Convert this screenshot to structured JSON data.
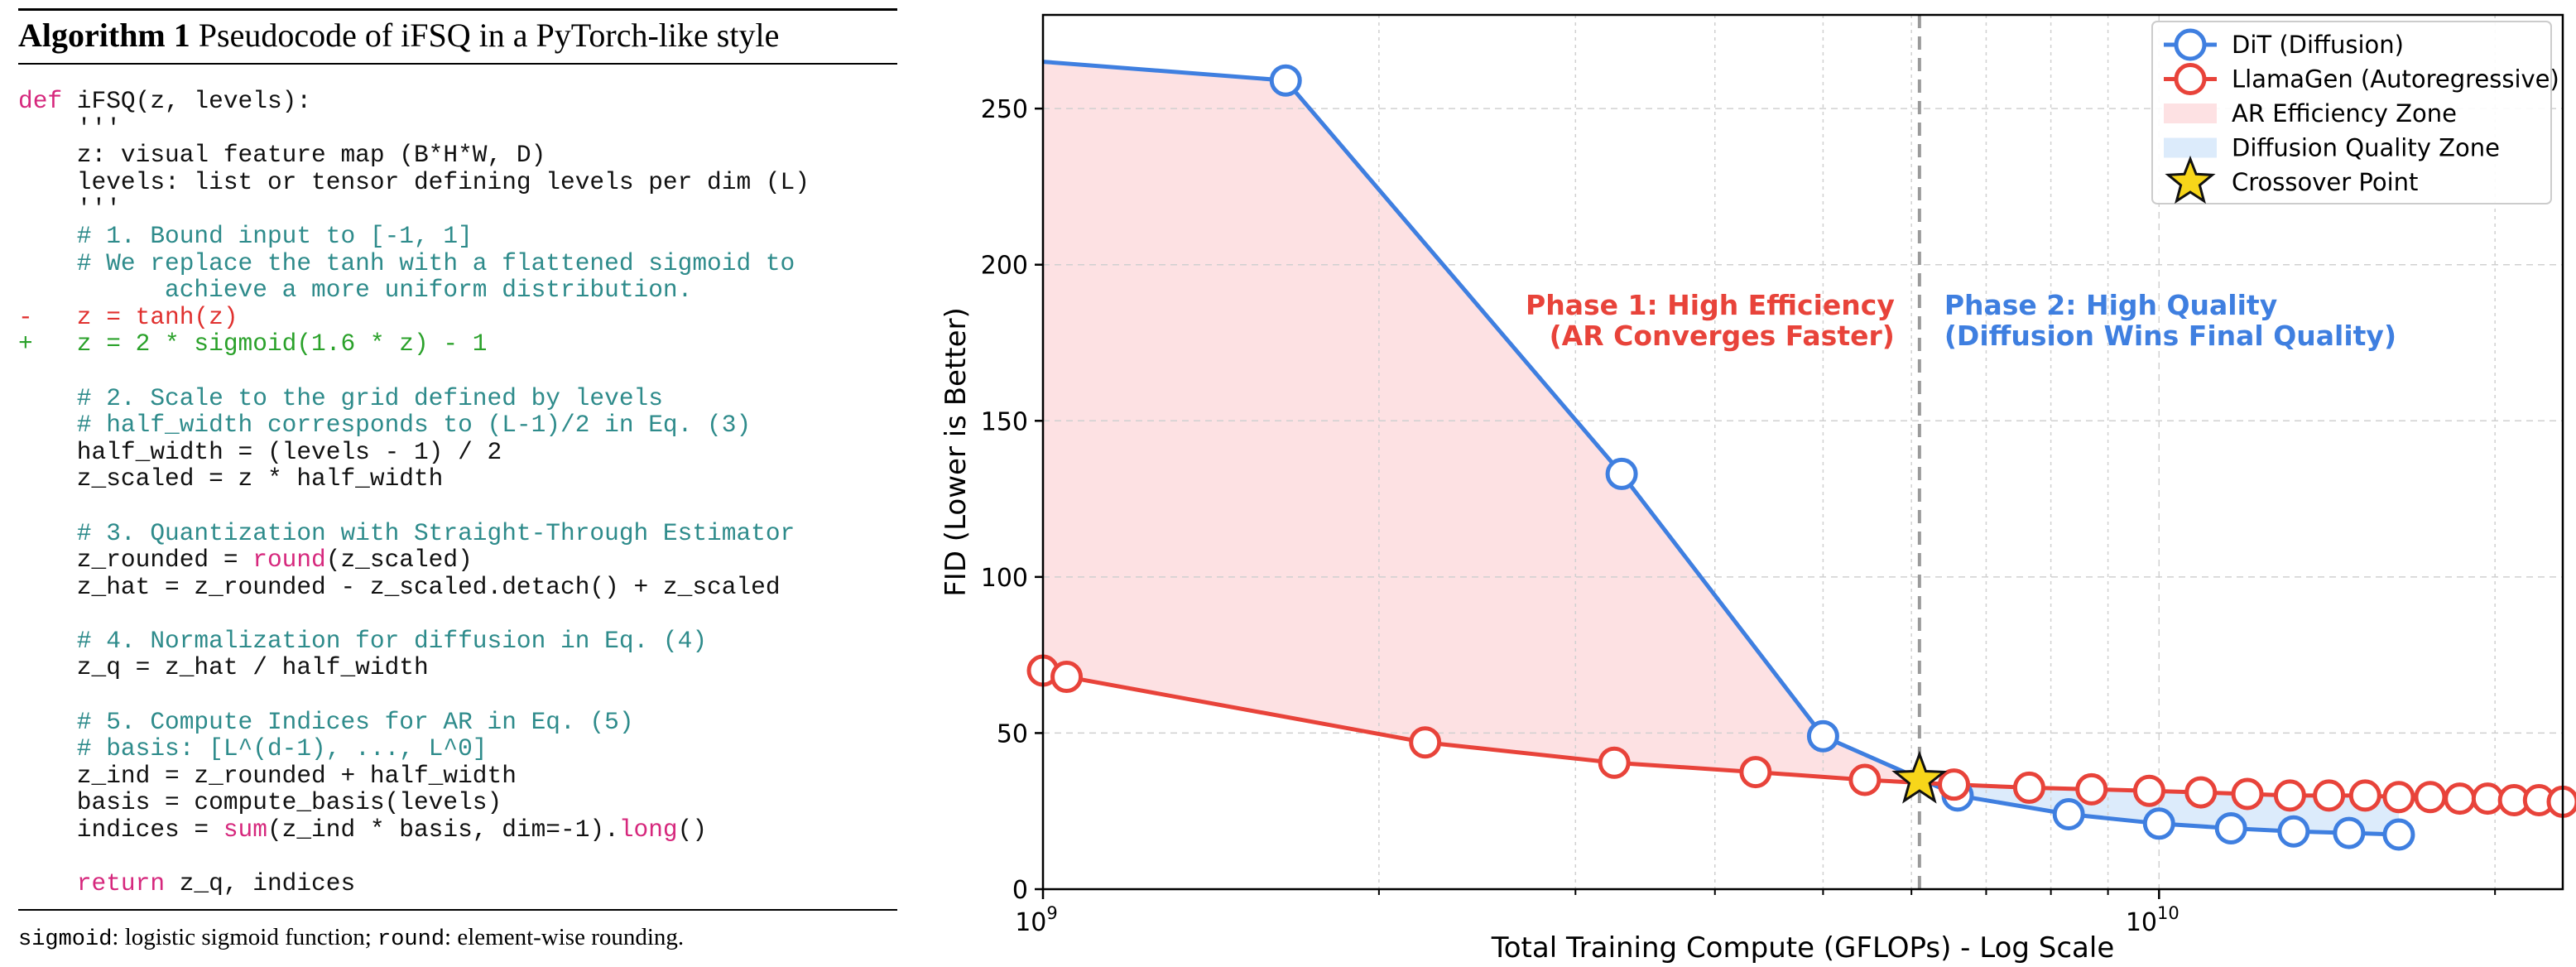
{
  "algorithm": {
    "label": "Algorithm 1",
    "title": "Pseudocode of iFSQ in a PyTorch-like style",
    "code_lines": [
      [
        {
          "t": "def",
          "c": "kw"
        },
        {
          "t": " iFSQ(z, levels):",
          "c": ""
        }
      ],
      [
        {
          "t": "    '''",
          "c": ""
        }
      ],
      [
        {
          "t": "    z: visual feature map (B*H*W, D)",
          "c": ""
        }
      ],
      [
        {
          "t": "    levels: list or tensor defining levels per dim (L)",
          "c": ""
        }
      ],
      [
        {
          "t": "    '''",
          "c": ""
        }
      ],
      [
        {
          "t": "    # 1. Bound input to [-1, 1]",
          "c": "cm"
        }
      ],
      [
        {
          "t": "    # We replace the tanh with a flattened sigmoid to",
          "c": "cm"
        }
      ],
      [
        {
          "t": "          achieve a more uniform distribution.",
          "c": "cm"
        }
      ],
      [
        {
          "t": "-   z = tanh(z)",
          "c": "rm"
        }
      ],
      [
        {
          "t": "+   z = 2 * sigmoid(1.6 * z) - 1",
          "c": "ad"
        }
      ],
      [
        {
          "t": "",
          "c": ""
        }
      ],
      [
        {
          "t": "    # 2. Scale to the grid defined by levels",
          "c": "cm"
        }
      ],
      [
        {
          "t": "    # half_width corresponds to (L-1)/2 in Eq. (3)",
          "c": "cm"
        }
      ],
      [
        {
          "t": "    half_width = (levels - 1) / 2",
          "c": ""
        }
      ],
      [
        {
          "t": "    z_scaled = z * half_width",
          "c": ""
        }
      ],
      [
        {
          "t": "",
          "c": ""
        }
      ],
      [
        {
          "t": "    # 3. Quantization with Straight-Through Estimator",
          "c": "cm"
        }
      ],
      [
        {
          "t": "    z_rounded = ",
          "c": ""
        },
        {
          "t": "round",
          "c": "fn"
        },
        {
          "t": "(z_scaled)",
          "c": ""
        }
      ],
      [
        {
          "t": "    z_hat = z_rounded - z_scaled.detach() + z_scaled",
          "c": ""
        }
      ],
      [
        {
          "t": "",
          "c": ""
        }
      ],
      [
        {
          "t": "    # 4. Normalization for diffusion in Eq. (4)",
          "c": "cm"
        }
      ],
      [
        {
          "t": "    z_q = z_hat / half_width",
          "c": ""
        }
      ],
      [
        {
          "t": "",
          "c": ""
        }
      ],
      [
        {
          "t": "    # 5. Compute Indices for AR in Eq. (5)",
          "c": "cm"
        }
      ],
      [
        {
          "t": "    # basis: [L^(d-1), ..., L^0]",
          "c": "cm"
        }
      ],
      [
        {
          "t": "    z_ind = z_rounded + half_width",
          "c": ""
        }
      ],
      [
        {
          "t": "    basis = compute_basis(levels)",
          "c": ""
        }
      ],
      [
        {
          "t": "    indices = ",
          "c": ""
        },
        {
          "t": "sum",
          "c": "fn"
        },
        {
          "t": "(z_ind * basis, dim=-1).",
          "c": ""
        },
        {
          "t": "long",
          "c": "fn"
        },
        {
          "t": "()",
          "c": ""
        }
      ],
      [
        {
          "t": "",
          "c": ""
        }
      ],
      [
        {
          "t": "    ",
          "c": ""
        },
        {
          "t": "return",
          "c": "kw"
        },
        {
          "t": " z_q, indices",
          "c": ""
        }
      ]
    ],
    "footnote_sigmoid": "sigmoid",
    "footnote_sigmoid_desc": ": logistic sigmoid function; ",
    "footnote_round": "round",
    "footnote_round_desc": ": element-wise rounding."
  },
  "chart_data": {
    "type": "line",
    "xscale": "log",
    "xlim": [
      1000000000,
      23000000000
    ],
    "ylim": [
      0,
      280
    ],
    "xlabel": "Total Training Compute (GFLOPs) - Log Scale",
    "ylabel": "FID (Lower is Better)",
    "xticks": [
      {
        "value": 1000000000,
        "base": "10",
        "exp": "9"
      },
      {
        "value": 10000000000,
        "base": "10",
        "exp": "10"
      }
    ],
    "yticks": [
      0,
      50,
      100,
      150,
      200,
      250
    ],
    "grid": true,
    "legend_position": "upper right",
    "series": [
      {
        "name": "DiT (Diffusion)",
        "color": "#3f7fe0",
        "x": [
          1000000000,
          1650000000,
          3300000000,
          5000000000,
          6600000000,
          8300000000,
          10000000000,
          11600000000,
          13200000000,
          14800000000,
          16400000000
        ],
        "y": [
          265,
          259,
          133,
          49,
          30,
          24,
          21,
          19.5,
          18.5,
          18,
          17.5
        ]
      },
      {
        "name": "LlamaGen (Autoregressive)",
        "color": "#e8433a",
        "x": [
          1000000000,
          1050000000,
          2200000000,
          3250000000,
          4350000000,
          5450000000,
          6550000000,
          7650000000,
          8700000000,
          9800000000,
          10900000000,
          12000000000,
          13100000000,
          14200000000,
          15300000000,
          16400000000,
          17500000000,
          18600000000,
          19700000000,
          20800000000,
          21900000000,
          23000000000
        ],
        "y": [
          70,
          68,
          47,
          40.5,
          37.5,
          35,
          33.5,
          32.5,
          32,
          31.5,
          31,
          30.5,
          30,
          30,
          30,
          29.5,
          29.5,
          29,
          29,
          28.5,
          28.5,
          28
        ]
      }
    ],
    "zones": [
      {
        "name": "AR Efficiency Zone",
        "color": "#fde1e3"
      },
      {
        "name": "Diffusion Quality Zone",
        "color": "#dcebfb"
      }
    ],
    "crossover": {
      "label": "Crossover Point",
      "x": 6100000000,
      "y": 35
    },
    "divider_x": 6100000000,
    "annotations": [
      {
        "line1": "Phase 1: High Efficiency",
        "line2": "(AR Converges Faster)",
        "color": "#e8433a",
        "anchor": "end"
      },
      {
        "line1": "Phase 2: High Quality",
        "line2": "(Diffusion Wins Final Quality)",
        "color": "#3f7fe0",
        "anchor": "start"
      }
    ]
  }
}
